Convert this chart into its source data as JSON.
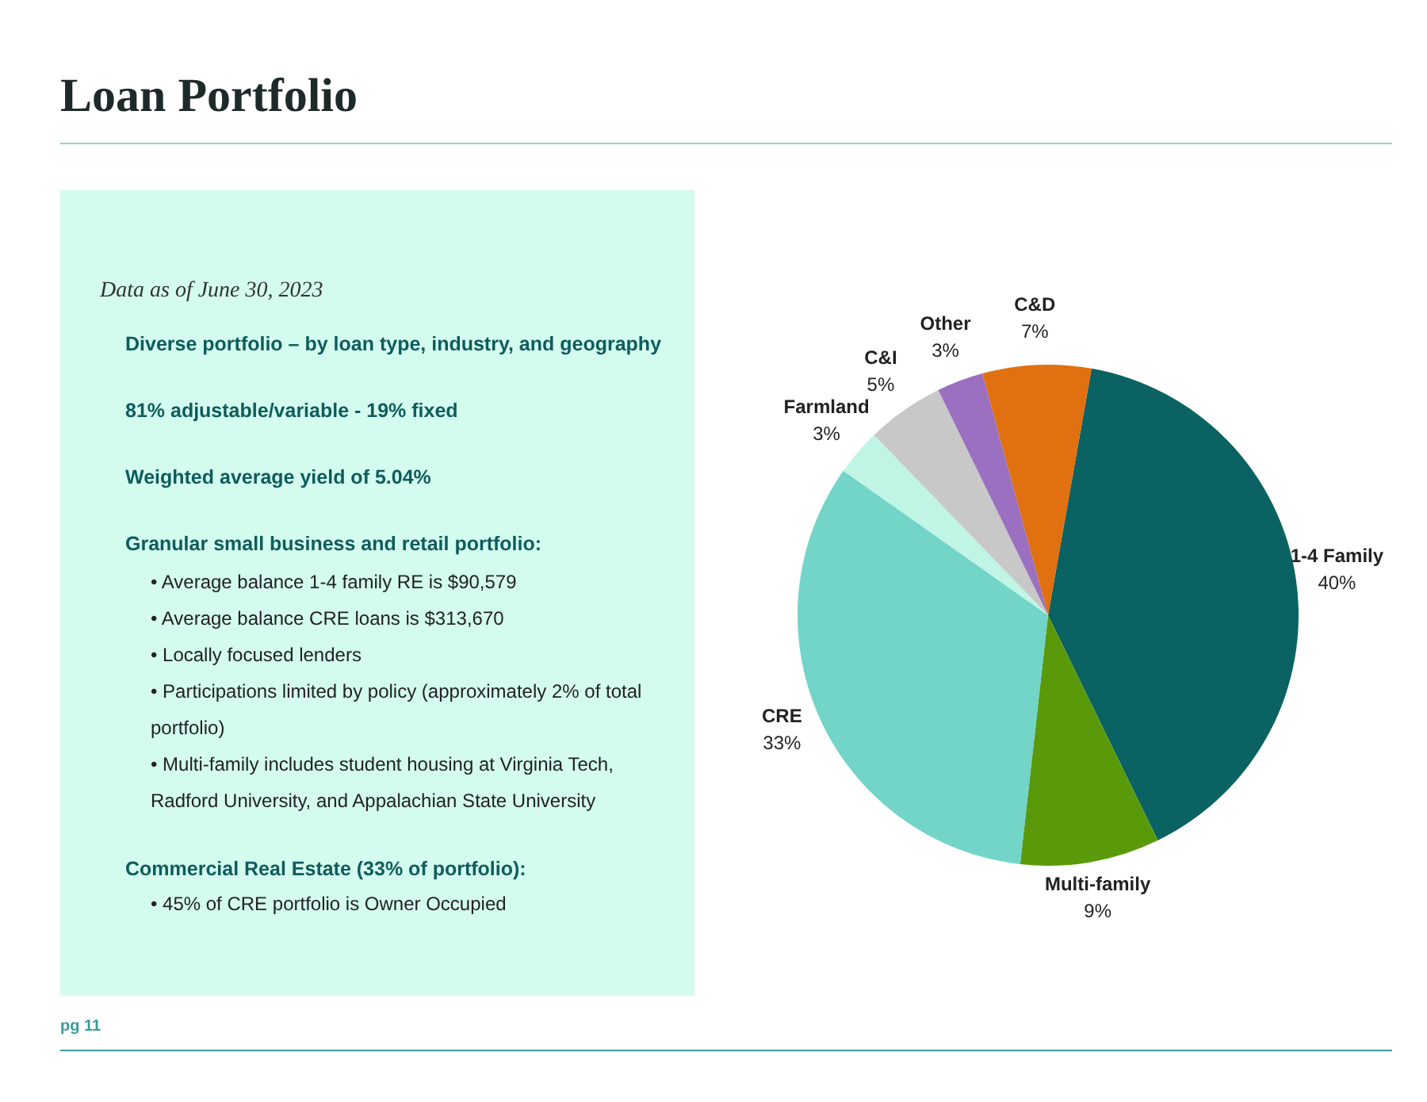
{
  "chart_data": {
    "type": "pie",
    "title": "Loan Portfolio",
    "subtitle": "Data as of June 30, 2023",
    "categories": [
      "1-4 Family",
      "Multi-family",
      "CRE",
      "Farmland",
      "C&I",
      "Other",
      "C&D"
    ],
    "values": [
      40,
      9,
      33,
      3,
      5,
      3,
      7
    ],
    "value_labels": [
      "40%",
      "9%",
      "33%",
      "3%",
      "5%",
      "3%",
      "7%"
    ],
    "colors": [
      "#0b6262",
      "#5a9a0a",
      "#72d5c8",
      "#c0f5e5",
      "#c8c8c8",
      "#9b70c0",
      "#e07010"
    ],
    "legend": false,
    "annotations": [
      "Diverse portfolio – by loan type, industry, and geography",
      "81% adjustable/variable - 19% fixed",
      "Weighted average yield of 5.04%",
      "Granular small business and retail portfolio:",
      "• Average balance 1-4 family RE is $90,579",
      "• Average balance CRE loans is $313,670",
      "• Locally focused lenders",
      "• Participations limited by policy (approximately 2% of total portfolio)",
      "• Multi-family includes student housing at Virginia Tech, Radford University, and Appalachian State University",
      "Commercial Real Estate (33% of portfolio):",
      "• 45% of CRE portfolio is Owner Occupied",
      "pg 11"
    ]
  }
}
